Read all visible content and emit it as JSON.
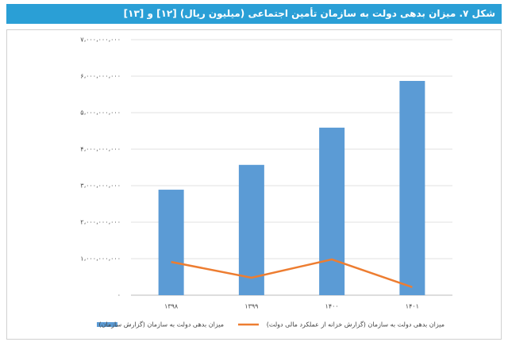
{
  "chart_data": {
    "type": "bar",
    "title": "شکل ۷. میزان بدهی دولت به سازمان تأمین اجتماعی (میلیون ریال) [۱۲] و [۱۳]",
    "categories": [
      "۱۳۹۸",
      "۱۳۹۹",
      "۱۴۰۰",
      "۱۴۰۱"
    ],
    "series": [
      {
        "name": "میزان بدهی دولت به سازمان (گزارش سازمان)",
        "type": "bar",
        "color": "#5b9bd5",
        "values": [
          2890000000,
          3570000000,
          4590000000,
          5870000000
        ]
      },
      {
        "name": "میزان بدهی دولت به سازمان (گزارش خزانه از عملکرد مالی دولت)",
        "type": "line",
        "color": "#ed7d31",
        "values": [
          910000000,
          480000000,
          980000000,
          220000000
        ]
      }
    ],
    "ylim": [
      0,
      7000000000
    ],
    "yticks": [
      {
        "value": 0,
        "label": "۰"
      },
      {
        "value": 1000000000,
        "label": "۱،۰۰۰،۰۰۰،۰۰۰"
      },
      {
        "value": 2000000000,
        "label": "۲،۰۰۰،۰۰۰،۰۰۰"
      },
      {
        "value": 3000000000,
        "label": "۳،۰۰۰،۰۰۰،۰۰۰"
      },
      {
        "value": 4000000000,
        "label": "۴،۰۰۰،۰۰۰،۰۰۰"
      },
      {
        "value": 5000000000,
        "label": "۵،۰۰۰،۰۰۰،۰۰۰"
      },
      {
        "value": 6000000000,
        "label": "۶،۰۰۰،۰۰۰،۰۰۰"
      },
      {
        "value": 7000000000,
        "label": "۷،۰۰۰،۰۰۰،۰۰۰"
      }
    ],
    "grid": true
  }
}
